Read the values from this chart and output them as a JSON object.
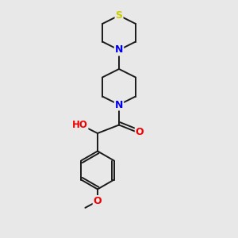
{
  "background_color": "#e8e8e8",
  "bond_color": "#1a1a1a",
  "bond_width": 1.4,
  "atom_colors": {
    "S": "#cccc00",
    "N": "#0000ee",
    "O": "#ee0000",
    "C": "#1a1a1a",
    "H": "#888888"
  },
  "font_size": 8.5
}
